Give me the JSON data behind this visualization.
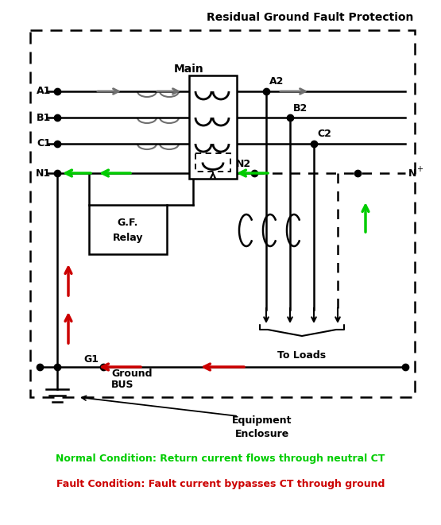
{
  "title": "Residual Ground Fault Protection",
  "normal_condition": "Normal Condition: Return current flows through neutral CT",
  "fault_condition": "Fault Condition: Fault current bypasses CT through ground",
  "green": "#00CC00",
  "red": "#CC0000",
  "black": "#000000",
  "gray": "#707070",
  "bg": "#FFFFFF",
  "fig_w": 5.55,
  "fig_h": 6.61,
  "dpi": 100
}
